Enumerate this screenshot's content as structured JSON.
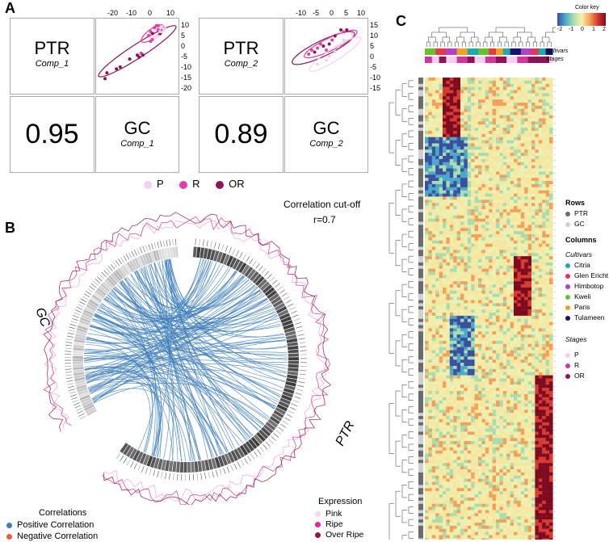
{
  "labels": {
    "A": "A",
    "B": "B",
    "C": "C"
  },
  "panelA": {
    "pairs": [
      {
        "y_label": "PTR",
        "y_comp": "Comp_1",
        "x_label": "GC",
        "x_comp": "Comp_1",
        "corr": "0.95",
        "x_ticks": [
          "-20",
          "-10",
          "0",
          "10"
        ],
        "y_ticks": [
          "10",
          "5",
          "0",
          "-5",
          "-10",
          "-15",
          "-20"
        ],
        "chart_data": {
          "type": "scatter",
          "x_range": [
            -26,
            14
          ],
          "y_range": [
            -23,
            12
          ],
          "points": [
            {
              "x": -23,
              "y": -17,
              "g": "OR"
            },
            {
              "x": -22,
              "y": -14,
              "g": "OR"
            },
            {
              "x": -17,
              "y": -12,
              "g": "OR"
            },
            {
              "x": -15,
              "y": -11,
              "g": "OR"
            },
            {
              "x": -10,
              "y": -7,
              "g": "OR"
            },
            {
              "x": -6,
              "y": -5,
              "g": "OR"
            },
            {
              "x": -5,
              "y": -6,
              "g": "OR"
            },
            {
              "x": -4,
              "y": -4,
              "g": "R"
            },
            {
              "x": -3,
              "y": -5,
              "g": "OR"
            },
            {
              "x": 0,
              "y": 5,
              "g": "R"
            },
            {
              "x": 1,
              "y": 7,
              "g": "R"
            },
            {
              "x": 2,
              "y": 6,
              "g": "OR"
            },
            {
              "x": 3,
              "y": 9,
              "g": "R"
            },
            {
              "x": 4,
              "y": 10,
              "g": "R"
            },
            {
              "x": 5,
              "y": 8,
              "g": "R"
            },
            {
              "x": 6,
              "y": 6,
              "g": "OR"
            },
            {
              "x": 2,
              "y": 3,
              "g": "R"
            },
            {
              "x": 3,
              "y": 4,
              "g": "P"
            },
            {
              "x": 4,
              "y": 5,
              "g": "P"
            },
            {
              "x": 6,
              "y": 7,
              "g": "P"
            },
            {
              "x": 7,
              "y": 9,
              "g": "P"
            },
            {
              "x": 5,
              "y": 10,
              "g": "R"
            },
            {
              "x": 1,
              "y": 2,
              "g": "R"
            },
            {
              "x": 8,
              "y": 8,
              "g": "P"
            }
          ],
          "ellipses": [
            {
              "g": "OR",
              "cx": -6,
              "cy": -3,
              "a": 24,
              "b": 3.5,
              "angle": 32
            },
            {
              "g": "R",
              "cx": 2,
              "cy": 6,
              "a": 7,
              "b": 2.4,
              "angle": 35
            },
            {
              "g": "P",
              "cx": 5,
              "cy": 6.5,
              "a": 5,
              "b": 1.8,
              "angle": 40
            }
          ]
        }
      },
      {
        "y_label": "PTR",
        "y_comp": "Comp_2",
        "x_label": "GC",
        "x_comp": "Comp_2",
        "corr": "0.89",
        "x_ticks": [
          "-10",
          "-5",
          "0",
          "5",
          "10"
        ],
        "y_ticks": [
          "15",
          "10",
          "5",
          "0",
          "-5",
          "-10",
          "-15"
        ],
        "chart_data": {
          "type": "scatter",
          "x_range": [
            -13,
            13
          ],
          "y_range": [
            -17,
            17
          ],
          "points": [
            {
              "x": -6,
              "y": 1,
              "g": "R"
            },
            {
              "x": -5,
              "y": 3,
              "g": "R"
            },
            {
              "x": -4,
              "y": 2,
              "g": "OR"
            },
            {
              "x": -3,
              "y": 4,
              "g": "R"
            },
            {
              "x": -2,
              "y": 6,
              "g": "R"
            },
            {
              "x": -1,
              "y": 5,
              "g": "OR"
            },
            {
              "x": 0,
              "y": 3,
              "g": "R"
            },
            {
              "x": 1,
              "y": 6,
              "g": "OR"
            },
            {
              "x": 2,
              "y": 8,
              "g": "R"
            },
            {
              "x": 3,
              "y": 10,
              "g": "OR"
            },
            {
              "x": 5,
              "y": 13,
              "g": "OR"
            },
            {
              "x": 6,
              "y": 12,
              "g": "R"
            },
            {
              "x": 7,
              "y": 13,
              "g": "OR"
            },
            {
              "x": -3,
              "y": -4,
              "g": "P"
            },
            {
              "x": 0,
              "y": -2,
              "g": "P"
            },
            {
              "x": 1,
              "y": 0,
              "g": "P"
            },
            {
              "x": 3,
              "y": 2,
              "g": "P"
            },
            {
              "x": 4,
              "y": 5,
              "g": "P"
            },
            {
              "x": 6,
              "y": 8,
              "g": "P"
            },
            {
              "x": 9,
              "y": 11,
              "g": "P"
            }
          ],
          "ellipses": [
            {
              "g": "OR",
              "cx": -1,
              "cy": 4,
              "a": 13,
              "b": 3.5,
              "angle": 36
            },
            {
              "g": "R",
              "cx": 1.5,
              "cy": 6,
              "a": 11,
              "b": 2.8,
              "angle": 36
            },
            {
              "g": "P",
              "cx": 3,
              "cy": 1,
              "a": 12,
              "b": 2.6,
              "angle": 44
            }
          ]
        }
      }
    ],
    "legend": [
      {
        "name": "P",
        "color": "#f6cff0"
      },
      {
        "name": "R",
        "color": "#e43ea8"
      },
      {
        "name": "OR",
        "color": "#8e1356"
      }
    ]
  },
  "panelB": {
    "cutoff_title": "Correlation cut-off",
    "cutoff_value": "r=0.7",
    "gc_label": "GC",
    "ptr_label": "PTR",
    "correlations_title": "Correlations",
    "correlations": [
      {
        "name": "Positive Correlation",
        "color": "#3f7eba"
      },
      {
        "name": "Negative Correlation",
        "color": "#f05a45"
      }
    ],
    "expression_title": "Expression",
    "expression": [
      {
        "name": "Pink",
        "color": "#f6d8f0"
      },
      {
        "name": "Ripe",
        "color": "#e0279c"
      },
      {
        "name": "Over Ripe",
        "color": "#8e1356"
      }
    ],
    "chart_data": {
      "type": "chord",
      "gc_features": 80,
      "ptr_features": 110,
      "correlation_cutoff": 0.7,
      "positive_links": 170,
      "negative_links": 0
    }
  },
  "panelC": {
    "color_key_title": "Color key",
    "color_key_ticks": [
      "-2",
      "-1",
      "0",
      "1",
      "2"
    ],
    "annotation_labels": [
      "Cultivars",
      "Stages"
    ],
    "rows_title": "Rows",
    "rows": [
      {
        "name": "PTR",
        "color": "#6b6b6b"
      },
      {
        "name": "GC",
        "color": "#cfcfcf"
      }
    ],
    "columns_title": "Columns",
    "cultivars_title": "Cultivars",
    "cultivars": [
      {
        "name": "Citria",
        "color": "#1ba8b0"
      },
      {
        "name": "Glen Ericht",
        "color": "#e8344e"
      },
      {
        "name": "Himbotop",
        "color": "#b040c8"
      },
      {
        "name": "Kweli",
        "color": "#68c02a"
      },
      {
        "name": "Paris",
        "color": "#f0a21a"
      },
      {
        "name": "Tulameen",
        "color": "#12136e"
      }
    ],
    "stages_title": "Stages",
    "stages": [
      {
        "name": "P",
        "color": "#f6cff0"
      },
      {
        "name": "R",
        "color": "#d1359a"
      },
      {
        "name": "OR",
        "color": "#8e1356"
      }
    ],
    "chart_data": {
      "type": "heatmap",
      "n_rows": 150,
      "n_cols": 36,
      "value_range": [
        -2,
        2
      ],
      "row_groups": [
        "PTR",
        "GC"
      ],
      "column_annotations": [
        "Cultivars",
        "Stages"
      ]
    }
  }
}
